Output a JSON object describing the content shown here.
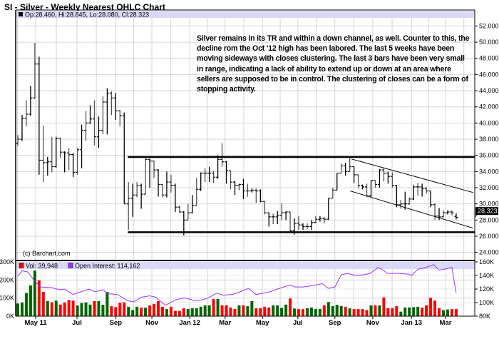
{
  "title": "SI - Silver - Weekly Nearest OHLC Chart",
  "ohlc_legend": "Op:28.460, Hi:28.845, Lo:28.080, Cl:28.323",
  "copyright": "(c) Barchart.com",
  "last_price_label": "28.323",
  "annotation_lines": [
    "Silver remains in its TR and within a down channel, as well.  Counter to this,",
    "the decline rom the Oct '12 high has been labored.   The last 5 weeks have",
    "been moving sideways with closes clustering.  The last 3 bars have been",
    "very small in range, indicating a lack of ability to extend up or down at an",
    "area where sellers are supposed to be in control.  The clustering of closes",
    "can be a form of stopping activity."
  ],
  "volume_legend": {
    "vol": "Vol: 39,948",
    "oi": "Open Interest: 114,162"
  },
  "colors": {
    "up": "#006600",
    "down": "#ff0000",
    "oi": "#9933ff",
    "legend_band": "#d9d9f7",
    "grid": "#d4d4d4",
    "bars": "#000000"
  },
  "chart_data": [
    {
      "type": "ohlc",
      "title": "SI - Silver - Weekly Nearest OHLC Chart",
      "ylim": [
        23,
        54
      ],
      "grid": true,
      "y_ticks": [
        "24.000",
        "26.000",
        "28.000",
        "30.000",
        "32.000",
        "34.000",
        "36.000",
        "38.000",
        "40.000",
        "42.000",
        "44.000",
        "46.000",
        "48.000",
        "50.000",
        "52.000"
      ],
      "x_ticks": [
        {
          "label": "May 11",
          "bar_index": 4.2
        },
        {
          "label": "Jul",
          "bar_index": 13.9
        },
        {
          "label": "Sep",
          "bar_index": 23
        },
        {
          "label": "Nov",
          "bar_index": 31.5
        },
        {
          "label": "Jan 12",
          "bar_index": 40.4
        },
        {
          "label": "Mar",
          "bar_index": 48.7
        },
        {
          "label": "May",
          "bar_index": 57.5
        },
        {
          "label": "Jul",
          "bar_index": 65.8
        },
        {
          "label": "Sep",
          "bar_index": 74.5
        },
        {
          "label": "Nov",
          "bar_index": 83.4
        },
        {
          "label": "Jan 13",
          "bar_index": 92.5
        },
        {
          "label": "Mar",
          "bar_index": 100.5
        }
      ],
      "bars": [
        [
          37.5,
          38.5,
          37.2,
          38.0
        ],
        [
          38.0,
          41.0,
          37.8,
          40.6
        ],
        [
          40.6,
          42.8,
          39.6,
          41.1
        ],
        [
          41.1,
          44.6,
          40.9,
          43.1
        ],
        [
          43.1,
          49.9,
          43.0,
          47.3
        ],
        [
          47.3,
          48.2,
          33.6,
          35.4
        ],
        [
          35.4,
          39.7,
          32.7,
          35.1
        ],
        [
          35.1,
          35.8,
          33.5,
          35.2
        ],
        [
          35.2,
          38.3,
          33.9,
          34.6
        ],
        [
          34.6,
          38.3,
          34.5,
          38.1
        ],
        [
          38.1,
          38.2,
          35.7,
          36.4
        ],
        [
          36.4,
          36.5,
          33.9,
          36.3
        ],
        [
          36.3,
          36.9,
          34.2,
          36.1
        ],
        [
          36.1,
          36.3,
          33.3,
          33.9
        ],
        [
          33.9,
          36.9,
          33.6,
          36.7
        ],
        [
          36.7,
          39.8,
          34.4,
          39.1
        ],
        [
          39.1,
          41.5,
          37.8,
          40.0
        ],
        [
          40.0,
          42.2,
          39.9,
          40.5
        ],
        [
          40.5,
          42.8,
          37.2,
          38.3
        ],
        [
          38.3,
          40.8,
          36.9,
          39.1
        ],
        [
          39.1,
          43.3,
          38.6,
          42.6
        ],
        [
          42.6,
          44.3,
          38.6,
          43.7
        ],
        [
          43.7,
          43.9,
          41.0,
          43.1
        ],
        [
          43.1,
          43.7,
          40.4,
          41.5
        ],
        [
          41.5,
          41.6,
          39.6,
          40.9
        ],
        [
          40.9,
          41.3,
          30.0,
          30.0
        ],
        [
          30.0,
          32.7,
          26.8,
          30.7
        ],
        [
          30.7,
          32.5,
          28.4,
          31.1
        ],
        [
          31.1,
          32.7,
          30.8,
          32.3
        ],
        [
          32.3,
          32.5,
          29.4,
          31.2
        ],
        [
          31.2,
          35.7,
          31.2,
          35.5
        ],
        [
          35.5,
          35.6,
          32.0,
          35.3
        ],
        [
          35.3,
          35.3,
          33.2,
          34.2
        ],
        [
          34.2,
          34.3,
          30.9,
          32.4
        ],
        [
          32.4,
          32.4,
          30.8,
          31.1
        ],
        [
          31.1,
          34.0,
          30.8,
          32.7
        ],
        [
          32.7,
          33.6,
          31.4,
          32.3
        ],
        [
          32.3,
          32.5,
          29.0,
          29.6
        ],
        [
          29.6,
          29.8,
          28.9,
          29.0
        ],
        [
          29.0,
          29.1,
          26.1,
          28.0
        ],
        [
          28.0,
          30.0,
          28.0,
          28.9
        ],
        [
          28.9,
          31.1,
          28.8,
          29.8
        ],
        [
          29.8,
          33.2,
          29.8,
          31.8
        ],
        [
          31.8,
          33.9,
          31.6,
          33.8
        ],
        [
          33.8,
          34.4,
          32.7,
          33.8
        ],
        [
          33.8,
          34.6,
          32.7,
          33.8
        ],
        [
          33.8,
          34.1,
          32.6,
          33.3
        ],
        [
          33.3,
          36.0,
          33.1,
          35.5
        ],
        [
          35.5,
          37.5,
          34.6,
          35.2
        ],
        [
          35.2,
          35.3,
          32.5,
          34.1
        ],
        [
          34.1,
          34.1,
          31.8,
          32.7
        ],
        [
          32.7,
          32.8,
          31.1,
          32.3
        ],
        [
          32.3,
          32.5,
          31.7,
          32.4
        ],
        [
          32.4,
          33.1,
          30.6,
          31.6
        ],
        [
          31.6,
          32.5,
          30.9,
          31.6
        ],
        [
          31.6,
          31.9,
          31.4,
          31.7
        ],
        [
          31.7,
          31.9,
          30.1,
          31.6
        ],
        [
          31.6,
          31.8,
          30.2,
          30.3
        ],
        [
          30.3,
          30.3,
          28.7,
          28.9
        ],
        [
          28.9,
          28.9,
          27.2,
          28.4
        ],
        [
          28.4,
          28.8,
          27.5,
          28.4
        ],
        [
          28.4,
          29.1,
          27.5,
          28.6
        ],
        [
          28.6,
          30.1,
          28.0,
          28.9
        ],
        [
          28.9,
          29.1,
          28.0,
          29.0
        ],
        [
          29.0,
          29.0,
          26.5,
          26.7
        ],
        [
          26.7,
          28.2,
          26.2,
          27.6
        ],
        [
          27.6,
          28.5,
          26.8,
          27.4
        ],
        [
          27.4,
          27.6,
          26.8,
          27.2
        ],
        [
          27.2,
          27.6,
          26.9,
          27.2
        ],
        [
          27.2,
          28.0,
          26.8,
          27.7
        ],
        [
          27.7,
          28.5,
          27.6,
          28.1
        ],
        [
          28.1,
          28.5,
          27.8,
          28.2
        ],
        [
          28.2,
          28.4,
          27.6,
          28.1
        ],
        [
          28.1,
          30.7,
          28.0,
          30.7
        ],
        [
          30.7,
          32.0,
          30.7,
          31.7
        ],
        [
          31.7,
          33.8,
          31.7,
          33.8
        ],
        [
          33.8,
          35.0,
          33.8,
          34.7
        ],
        [
          34.7,
          35.1,
          33.5,
          34.0
        ],
        [
          34.0,
          35.7,
          34.0,
          34.6
        ],
        [
          34.6,
          34.6,
          32.6,
          33.6
        ],
        [
          33.6,
          33.6,
          31.9,
          32.3
        ],
        [
          32.3,
          32.4,
          31.8,
          32.1
        ],
        [
          32.1,
          32.5,
          30.8,
          31.0
        ],
        [
          31.0,
          32.9,
          30.8,
          32.9
        ],
        [
          32.9,
          32.9,
          32.0,
          32.4
        ],
        [
          32.4,
          34.3,
          32.0,
          34.2
        ],
        [
          34.2,
          34.5,
          32.8,
          33.8
        ],
        [
          33.8,
          34.0,
          32.5,
          33.4
        ],
        [
          33.4,
          33.9,
          32.0,
          32.3
        ],
        [
          32.3,
          32.3,
          29.6,
          29.9
        ],
        [
          29.9,
          30.5,
          29.4,
          30.0
        ],
        [
          30.0,
          31.5,
          29.3,
          30.0
        ],
        [
          30.0,
          30.8,
          29.9,
          30.6
        ],
        [
          30.6,
          32.3,
          30.5,
          32.1
        ],
        [
          32.1,
          32.6,
          31.0,
          32.1
        ],
        [
          32.1,
          32.5,
          30.9,
          31.9
        ],
        [
          31.9,
          32.1,
          31.3,
          31.6
        ],
        [
          31.6,
          31.6,
          29.6,
          29.9
        ],
        [
          29.9,
          30.1,
          28.0,
          28.5
        ],
        [
          28.5,
          29.5,
          28.0,
          28.4
        ],
        [
          28.4,
          29.2,
          28.3,
          28.9
        ],
        [
          28.9,
          29.2,
          28.7,
          29.0
        ],
        [
          29.0,
          29.2,
          28.6,
          28.9
        ],
        [
          28.46,
          28.845,
          28.08,
          28.323
        ]
      ],
      "trading_range": {
        "upper": 35.8,
        "lower": 26.5,
        "from_bar": 26
      },
      "down_channel": {
        "upper": {
          "from": [
            78.4,
            35.55
          ],
          "to": [
            107,
            31.4
          ]
        },
        "lower": {
          "from": [
            78.1,
            31.6
          ],
          "to": [
            107,
            27.0
          ]
        }
      }
    },
    {
      "type": "bar+line",
      "volume_ylim_k": [
        0,
        300
      ],
      "volume_ticks": [
        "0K",
        "100K",
        "200K",
        "300K"
      ],
      "oi_ylim_k": [
        80,
        160
      ],
      "oi_ticks": [
        "80K",
        "100K",
        "120K",
        "140K",
        "160K"
      ],
      "volume_k": [
        70,
        76,
        128,
        170,
        252,
        198,
        134,
        83,
        77,
        86,
        64,
        76,
        90,
        86,
        59,
        73,
        76,
        64,
        83,
        83,
        63,
        134,
        55,
        50,
        74,
        76,
        52,
        34,
        52,
        48,
        47,
        59,
        68,
        83,
        52,
        39,
        52,
        29,
        29,
        44,
        40,
        44,
        44,
        52,
        60,
        60,
        95,
        95,
        60,
        60,
        48,
        40,
        60,
        60,
        55,
        83,
        44,
        44,
        52,
        48,
        60,
        60,
        46,
        64,
        98,
        42,
        39,
        39,
        44,
        48,
        40,
        40,
        60,
        78,
        56,
        63,
        56,
        52,
        43,
        39,
        39,
        39,
        34,
        60,
        60,
        60,
        104,
        44,
        44,
        55,
        25,
        48,
        48,
        50,
        52,
        46,
        60,
        102,
        86,
        44,
        33,
        37,
        39,
        39.948
      ],
      "open_interest_k": [
        [
          0,
          139
        ],
        [
          1,
          147
        ],
        [
          2.4,
          145
        ],
        [
          3.9,
          132
        ],
        [
          5.4,
          123
        ],
        [
          8,
          122
        ],
        [
          9.9,
          119
        ],
        [
          11,
          120
        ],
        [
          12.9,
          112
        ],
        [
          14.4,
          115
        ],
        [
          16.7,
          120
        ],
        [
          18.2,
          116
        ],
        [
          20,
          119
        ],
        [
          21.2,
          113
        ],
        [
          23.4,
          112
        ],
        [
          25.7,
          103
        ],
        [
          27.2,
          101
        ],
        [
          29.1,
          108
        ],
        [
          31,
          110
        ],
        [
          32.4,
          108
        ],
        [
          34.7,
          96
        ],
        [
          37,
          104
        ],
        [
          39.2,
          107
        ],
        [
          41.5,
          103
        ],
        [
          43.3,
          104
        ],
        [
          44.8,
          107
        ],
        [
          46.7,
          114
        ],
        [
          48.2,
          111
        ],
        [
          50.5,
          112
        ],
        [
          52.7,
          117
        ],
        [
          54.2,
          121
        ],
        [
          56,
          112
        ],
        [
          58.7,
          115
        ],
        [
          61,
          120
        ],
        [
          62.5,
          123
        ],
        [
          64,
          126
        ],
        [
          65.1,
          123
        ],
        [
          67,
          123
        ],
        [
          69.3,
          125
        ],
        [
          71.5,
          128
        ],
        [
          73,
          121
        ],
        [
          74.5,
          123
        ],
        [
          76,
          141
        ],
        [
          77.5,
          143
        ],
        [
          79.4,
          140
        ],
        [
          81.3,
          141
        ],
        [
          82.8,
          143
        ],
        [
          84.7,
          152
        ],
        [
          85.8,
          148
        ],
        [
          86.9,
          143
        ],
        [
          89.5,
          143
        ],
        [
          91.8,
          142
        ],
        [
          92.5,
          140
        ],
        [
          94,
          149
        ],
        [
          95.9,
          152
        ],
        [
          97.7,
          156
        ],
        [
          99,
          148
        ],
        [
          100,
          149
        ],
        [
          102,
          152
        ],
        [
          103,
          114.162
        ]
      ]
    }
  ]
}
